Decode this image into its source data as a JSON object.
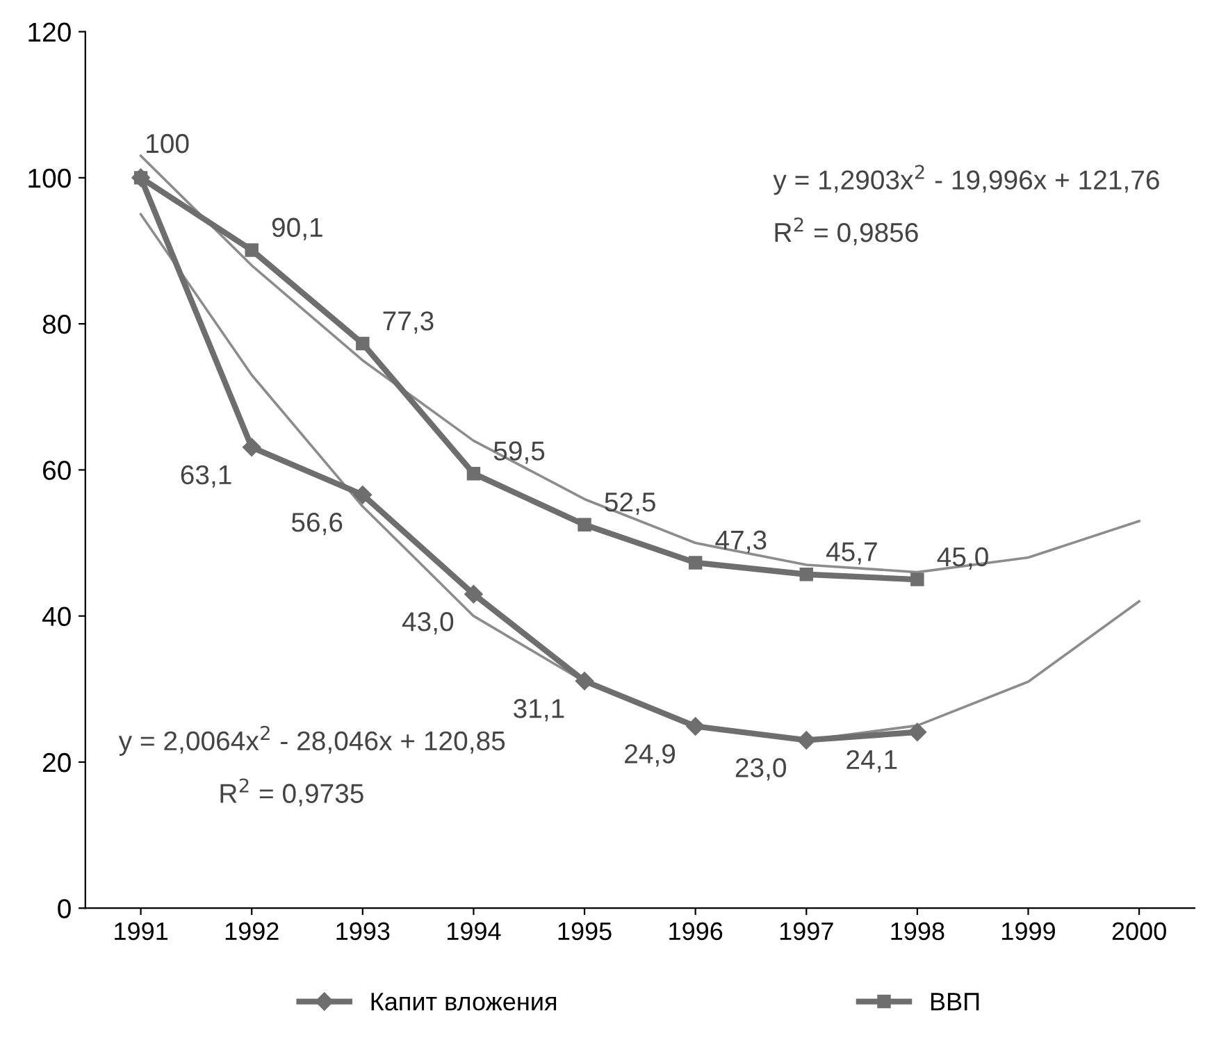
{
  "chart_data": {
    "type": "line",
    "categories": [
      "1991",
      "1992",
      "1993",
      "1994",
      "1995",
      "1996",
      "1997",
      "1998",
      "1999",
      "2000"
    ],
    "series": [
      {
        "name": "Капит вложения",
        "color": "#6e6e6e",
        "marker": "diamond",
        "values": [
          100,
          63.1,
          56.6,
          43.0,
          31.1,
          24.9,
          23.0,
          24.1,
          null,
          null
        ],
        "value_labels": [
          "100",
          "63,1",
          "56,6",
          "43,0",
          "31,1",
          "24,9",
          "23,0",
          "24,1",
          null,
          null
        ]
      },
      {
        "name": "ВВП",
        "color": "#6e6e6e",
        "marker": "square",
        "values": [
          100,
          90.1,
          77.3,
          59.5,
          52.5,
          47.3,
          45.7,
          45.0,
          null,
          null
        ],
        "value_labels": [
          null,
          "90,1",
          "77,3",
          "59,5",
          "52,5",
          "47,3",
          "45,7",
          "45,0",
          null,
          null
        ]
      },
      {
        "color": "#8c8c8c",
        "marker": "none",
        "values": [
          95,
          73,
          55,
          40,
          31,
          25,
          23,
          25,
          31,
          42
        ]
      },
      {
        "color": "#8c8c8c",
        "marker": "none",
        "values": [
          103,
          88,
          75,
          64,
          56,
          50,
          47,
          46,
          48,
          53
        ]
      }
    ],
    "ylim": [
      0,
      120
    ],
    "yticks": [
      0,
      20,
      40,
      60,
      80,
      100,
      120
    ],
    "annotations": [
      "y = 1,2903x$^{2}$ - 19,996x + 121,76",
      "R$^{2}$ = 0,9856",
      "y = 2,0064x$^{2}$ - 28,046x + 120,85",
      "R$^{2}$ = 0,9735"
    ],
    "grid": false,
    "legend": "bottom"
  }
}
